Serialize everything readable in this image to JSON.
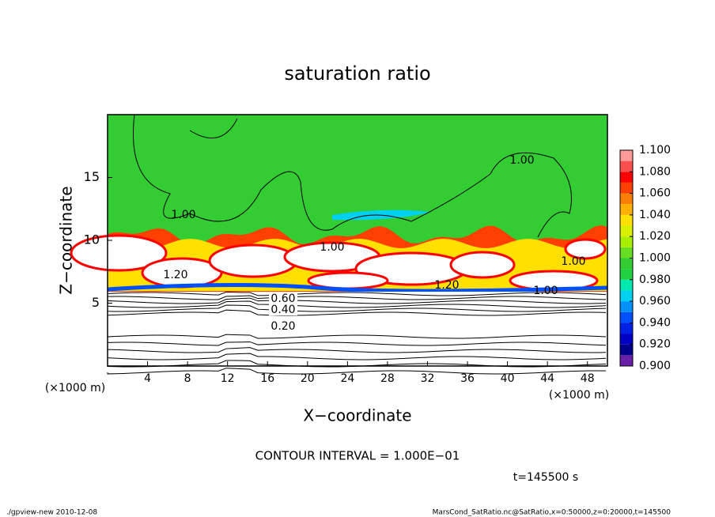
{
  "chart_data": {
    "type": "contour",
    "title": "saturation ratio",
    "x_label": "X−coordinate",
    "y_label": "Z−coordinate",
    "x_unit_left": "(×1000 m)",
    "x_unit_right": "(×1000 m)",
    "xlim": [
      0,
      50
    ],
    "ylim": [
      0,
      20
    ],
    "xticks": [
      4,
      8,
      12,
      16,
      20,
      24,
      28,
      32,
      36,
      40,
      44,
      48
    ],
    "yticks": [
      5,
      10,
      15
    ],
    "contour_labels": [
      "1.00",
      "1.00",
      "1.00",
      "1.00",
      "1.00",
      "1.20",
      "1.20",
      "0.60",
      "0.40",
      "0.20"
    ],
    "colorbar": {
      "levels": [
        0.9,
        0.91,
        0.92,
        0.93,
        0.94,
        0.95,
        0.96,
        0.97,
        0.98,
        0.99,
        1.0,
        1.01,
        1.02,
        1.03,
        1.04,
        1.05,
        1.06,
        1.07,
        1.08,
        1.09,
        1.1
      ],
      "colors": [
        "#6a1fa8",
        "#00008c",
        "#0000c4",
        "#0020e6",
        "#0050ff",
        "#0090ff",
        "#00d0f0",
        "#00e8b0",
        "#20d040",
        "#33cc33",
        "#66dd22",
        "#a8ee00",
        "#d8f000",
        "#ffe000",
        "#ffb000",
        "#ff8000",
        "#ff4000",
        "#ff0000",
        "#ff5050",
        "#ff9a9a"
      ],
      "ticks": [
        {
          "value": 0.9,
          "label": "0.900"
        },
        {
          "value": 0.92,
          "label": "0.920"
        },
        {
          "value": 0.94,
          "label": "0.940"
        },
        {
          "value": 0.96,
          "label": "0.960"
        },
        {
          "value": 0.98,
          "label": "0.980"
        },
        {
          "value": 1.0,
          "label": "1.000"
        },
        {
          "value": 1.02,
          "label": "1.020"
        },
        {
          "value": 1.04,
          "label": "1.040"
        },
        {
          "value": 1.06,
          "label": "1.060"
        },
        {
          "value": 1.08,
          "label": "1.080"
        },
        {
          "value": 1.1,
          "label": "1.100"
        }
      ]
    },
    "contour_interval": "CONTOUR INTERVAL = 1.000E−01",
    "time_label": "t=145500 s",
    "footer_left": "./gpview-new  2010-12-08",
    "footer_right": "MarsCond_SatRatio.nc@SatRatio,x=0:50000,z=0:20000,t=145500"
  }
}
